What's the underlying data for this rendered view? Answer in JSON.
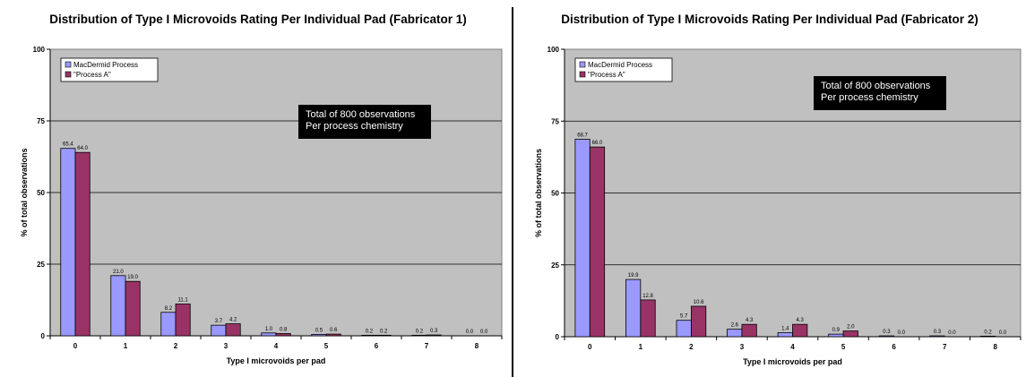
{
  "chart_data": [
    {
      "type": "bar",
      "title": "Distribution of Type I  Microvoids Rating Per Individual Pad (Fabricator 1)",
      "xlabel": "Type I microvoids per pad",
      "ylabel": "% of total observations",
      "categories": [
        "0",
        "1",
        "2",
        "3",
        "4",
        "5",
        "6",
        "7",
        "8"
      ],
      "series": [
        {
          "name": "MacDermid Process",
          "values": [
            65.4,
            21.0,
            8.2,
            3.7,
            1.0,
            0.5,
            0.2,
            0.2,
            0.0
          ]
        },
        {
          "name": "\"Process A\"",
          "values": [
            64.0,
            19.0,
            11.1,
            4.2,
            0.8,
            0.6,
            0.2,
            0.3,
            0.0
          ]
        }
      ],
      "ylim": [
        0,
        100
      ],
      "yticks": [
        "0",
        "25",
        "50",
        "75",
        "100"
      ],
      "annotation": [
        "Total of 800 observations",
        "Per process chemistry"
      ],
      "grid": true,
      "legend_position": "top-left",
      "colors": {
        "series1": "#9999ff",
        "series2": "#993366",
        "plot_bg": "#c0c0c0",
        "annotation_bg": "#000000"
      }
    },
    {
      "type": "bar",
      "title": "Distribution of Type I  Microvoids Rating Per Individual Pad (Fabricator 2)",
      "xlabel": "Type I microvoids per pad",
      "ylabel": "% of total observations",
      "categories": [
        "0",
        "1",
        "2",
        "3",
        "4",
        "5",
        "6",
        "7",
        "8"
      ],
      "series": [
        {
          "name": "MacDermid Process",
          "values": [
            68.7,
            19.9,
            5.7,
            2.6,
            1.4,
            0.9,
            0.3,
            0.3,
            0.2
          ]
        },
        {
          "name": "\"Process A\"",
          "values": [
            66.0,
            12.8,
            10.6,
            4.3,
            4.3,
            2.0,
            0.0,
            0.0,
            0.0
          ]
        }
      ],
      "ylim": [
        0,
        100
      ],
      "yticks": [
        "0",
        "25",
        "50",
        "75",
        "100"
      ],
      "annotation": [
        "Total of 800 observations",
        "Per process chemistry"
      ],
      "grid": true,
      "legend_position": "top-left",
      "colors": {
        "series1": "#9999ff",
        "series2": "#993366",
        "plot_bg": "#c0c0c0",
        "annotation_bg": "#000000"
      }
    }
  ]
}
